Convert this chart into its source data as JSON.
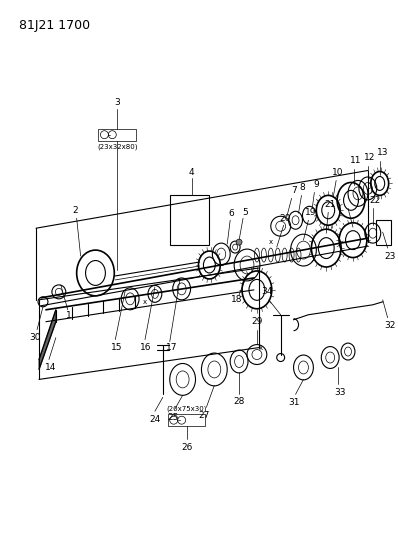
{
  "title": "81J21 1700",
  "background_color": "#ffffff",
  "figsize": [
    3.98,
    5.33
  ],
  "dpi": 100,
  "annotation_3": "(23x32x80)",
  "annotation_25": "(20x75x30)",
  "line_color": "#000000",
  "text_color": "#000000",
  "title_fontsize": 9,
  "label_fontsize": 6.5,
  "annot_fontsize": 5.0
}
